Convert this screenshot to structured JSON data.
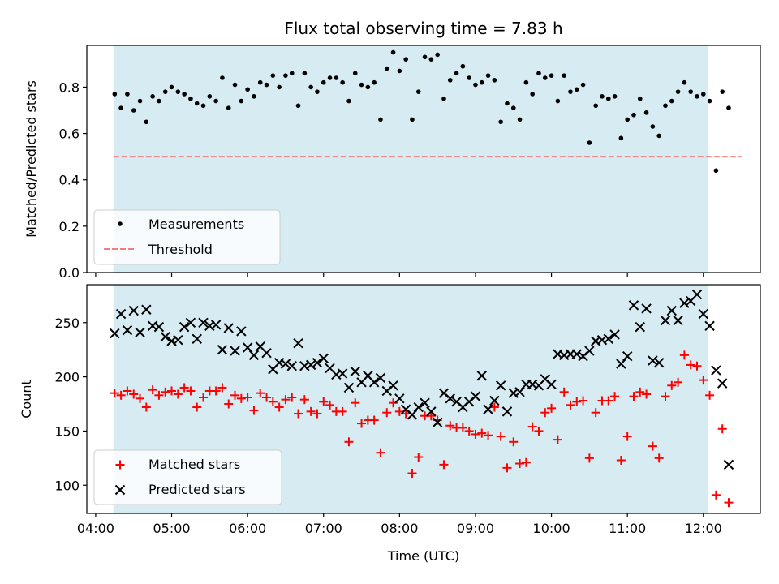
{
  "title": "Flux total observing time = 7.83 h",
  "colors": {
    "shade": "#add8e6",
    "measurement": "#000000",
    "threshold": "#f08080",
    "matched": "#ff0000",
    "predicted": "#000000"
  },
  "chart_data": [
    {
      "type": "scatter",
      "ylabel": "Matched/Predicted stars",
      "ylim": [
        0,
        0.98
      ],
      "yticks": [
        0.0,
        0.2,
        0.4,
        0.6,
        0.8
      ],
      "ytick_labels": [
        "0.0",
        "0.2",
        "0.4",
        "0.6",
        "0.8"
      ],
      "grid": false,
      "legend_position": "lower-left",
      "observing_window": [
        "04:14",
        "12:04"
      ],
      "threshold": {
        "name": "Threshold",
        "value": 0.5,
        "x_range": [
          "04:14",
          "12:30"
        ]
      },
      "series": [
        {
          "name": "Measurements",
          "x": [
            "04:15",
            "04:20",
            "04:25",
            "04:30",
            "04:35",
            "04:40",
            "04:45",
            "04:50",
            "04:55",
            "05:00",
            "05:05",
            "05:10",
            "05:15",
            "05:20",
            "05:25",
            "05:30",
            "05:35",
            "05:40",
            "05:45",
            "05:50",
            "05:55",
            "06:00",
            "06:05",
            "06:10",
            "06:15",
            "06:20",
            "06:25",
            "06:30",
            "06:35",
            "06:40",
            "06:45",
            "06:50",
            "06:55",
            "07:00",
            "07:05",
            "07:10",
            "07:15",
            "07:20",
            "07:25",
            "07:30",
            "07:35",
            "07:40",
            "07:45",
            "07:50",
            "07:55",
            "08:00",
            "08:05",
            "08:10",
            "08:15",
            "08:20",
            "08:25",
            "08:30",
            "08:35",
            "08:40",
            "08:45",
            "08:50",
            "08:55",
            "09:00",
            "09:05",
            "09:10",
            "09:15",
            "09:20",
            "09:25",
            "09:30",
            "09:35",
            "09:40",
            "09:45",
            "09:50",
            "09:55",
            "10:00",
            "10:05",
            "10:10",
            "10:15",
            "10:20",
            "10:25",
            "10:30",
            "10:35",
            "10:40",
            "10:45",
            "10:50",
            "10:55",
            "11:00",
            "11:05",
            "11:10",
            "11:15",
            "11:20",
            "11:25",
            "11:30",
            "11:35",
            "11:40",
            "11:45",
            "11:50",
            "11:55",
            "12:00",
            "12:05",
            "12:10",
            "12:15",
            "12:20"
          ],
          "y": [
            0.77,
            0.71,
            0.77,
            0.7,
            0.74,
            0.65,
            0.76,
            0.74,
            0.78,
            0.8,
            0.78,
            0.77,
            0.75,
            0.73,
            0.72,
            0.76,
            0.74,
            0.84,
            0.71,
            0.81,
            0.74,
            0.79,
            0.76,
            0.82,
            0.81,
            0.85,
            0.8,
            0.85,
            0.86,
            0.72,
            0.86,
            0.8,
            0.78,
            0.82,
            0.84,
            0.84,
            0.82,
            0.74,
            0.86,
            0.81,
            0.8,
            0.82,
            0.66,
            0.88,
            0.95,
            0.87,
            0.92,
            0.66,
            0.78,
            0.93,
            0.92,
            0.94,
            0.75,
            0.83,
            0.86,
            0.89,
            0.84,
            0.81,
            0.82,
            0.85,
            0.83,
            0.65,
            0.73,
            0.71,
            0.66,
            0.82,
            0.77,
            0.86,
            0.84,
            0.85,
            0.74,
            0.85,
            0.78,
            0.79,
            0.81,
            0.56,
            0.72,
            0.76,
            0.75,
            0.76,
            0.58,
            0.66,
            0.68,
            0.75,
            0.69,
            0.63,
            0.59,
            0.72,
            0.74,
            0.78,
            0.82,
            0.78,
            0.76,
            0.77,
            0.74,
            0.44,
            0.78,
            0.71
          ]
        }
      ]
    },
    {
      "type": "scatter",
      "xlabel": "Time (UTC)",
      "ylabel": "Count",
      "ylim": [
        74,
        285
      ],
      "yticks": [
        100,
        150,
        200,
        250
      ],
      "ytick_labels": [
        "100",
        "150",
        "200",
        "250"
      ],
      "xticks": [
        "04:00",
        "05:00",
        "06:00",
        "07:00",
        "08:00",
        "09:00",
        "10:00",
        "11:00",
        "12:00"
      ],
      "xlim": [
        "03:53",
        "12:45"
      ],
      "grid": false,
      "legend_position": "lower-left",
      "observing_window": [
        "04:14",
        "12:04"
      ],
      "series": [
        {
          "name": "Matched stars",
          "marker": "plus",
          "x": [
            "04:15",
            "04:20",
            "04:25",
            "04:30",
            "04:35",
            "04:40",
            "04:45",
            "04:50",
            "04:55",
            "05:00",
            "05:05",
            "05:10",
            "05:15",
            "05:20",
            "05:25",
            "05:30",
            "05:35",
            "05:40",
            "05:45",
            "05:50",
            "05:55",
            "06:00",
            "06:05",
            "06:10",
            "06:15",
            "06:20",
            "06:25",
            "06:30",
            "06:35",
            "06:40",
            "06:45",
            "06:50",
            "06:55",
            "07:00",
            "07:05",
            "07:10",
            "07:15",
            "07:20",
            "07:25",
            "07:30",
            "07:35",
            "07:40",
            "07:45",
            "07:50",
            "07:55",
            "08:00",
            "08:05",
            "08:10",
            "08:15",
            "08:20",
            "08:25",
            "08:30",
            "08:35",
            "08:40",
            "08:45",
            "08:50",
            "08:55",
            "09:00",
            "09:05",
            "09:10",
            "09:15",
            "09:20",
            "09:25",
            "09:30",
            "09:35",
            "09:40",
            "09:45",
            "09:50",
            "09:55",
            "10:00",
            "10:05",
            "10:10",
            "10:15",
            "10:20",
            "10:25",
            "10:30",
            "10:35",
            "10:40",
            "10:45",
            "10:50",
            "10:55",
            "11:00",
            "11:05",
            "11:10",
            "11:15",
            "11:20",
            "11:25",
            "11:30",
            "11:35",
            "11:40",
            "11:45",
            "11:50",
            "11:55",
            "12:00",
            "12:05",
            "12:10",
            "12:15",
            "12:20"
          ],
          "y": [
            185,
            183,
            187,
            184,
            180,
            172,
            188,
            183,
            186,
            187,
            184,
            190,
            187,
            172,
            181,
            187,
            187,
            190,
            175,
            183,
            180,
            181,
            169,
            185,
            181,
            177,
            172,
            179,
            181,
            166,
            179,
            168,
            166,
            177,
            174,
            168,
            168,
            140,
            176,
            157,
            160,
            160,
            130,
            167,
            176,
            168,
            166,
            111,
            126,
            164,
            164,
            160,
            119,
            155,
            153,
            153,
            150,
            147,
            148,
            146,
            172,
            145,
            116,
            140,
            120,
            121,
            154,
            150,
            167,
            171,
            142,
            186,
            174,
            177,
            178,
            125,
            167,
            178,
            178,
            182,
            123,
            145,
            182,
            186,
            184,
            136,
            125,
            182,
            192,
            195,
            220,
            211,
            210,
            197,
            183,
            91,
            152,
            84
          ]
        },
        {
          "name": "Predicted stars",
          "marker": "x",
          "x": [
            "04:15",
            "04:20",
            "04:25",
            "04:30",
            "04:35",
            "04:40",
            "04:45",
            "04:50",
            "04:55",
            "05:00",
            "05:05",
            "05:10",
            "05:15",
            "05:20",
            "05:25",
            "05:30",
            "05:35",
            "05:40",
            "05:45",
            "05:50",
            "05:55",
            "06:00",
            "06:05",
            "06:10",
            "06:15",
            "06:20",
            "06:25",
            "06:30",
            "06:35",
            "06:40",
            "06:45",
            "06:50",
            "06:55",
            "07:00",
            "07:05",
            "07:10",
            "07:15",
            "07:20",
            "07:25",
            "07:30",
            "07:35",
            "07:40",
            "07:45",
            "07:50",
            "07:55",
            "08:00",
            "08:05",
            "08:10",
            "08:15",
            "08:20",
            "08:25",
            "08:30",
            "08:35",
            "08:40",
            "08:45",
            "08:50",
            "08:55",
            "09:00",
            "09:05",
            "09:10",
            "09:15",
            "09:20",
            "09:25",
            "09:30",
            "09:35",
            "09:40",
            "09:45",
            "09:50",
            "09:55",
            "10:00",
            "10:05",
            "10:10",
            "10:15",
            "10:20",
            "10:25",
            "10:30",
            "10:35",
            "10:40",
            "10:45",
            "10:50",
            "10:55",
            "11:00",
            "11:05",
            "11:10",
            "11:15",
            "11:20",
            "11:25",
            "11:30",
            "11:35",
            "11:40",
            "11:45",
            "11:50",
            "11:55",
            "12:00",
            "12:05",
            "12:10",
            "12:15",
            "12:20"
          ],
          "y": [
            240,
            258,
            243,
            261,
            241,
            262,
            247,
            246,
            237,
            233,
            234,
            246,
            250,
            235,
            250,
            247,
            248,
            225,
            245,
            224,
            242,
            227,
            220,
            228,
            222,
            207,
            213,
            212,
            210,
            231,
            210,
            211,
            213,
            217,
            208,
            202,
            203,
            190,
            205,
            195,
            201,
            195,
            199,
            187,
            192,
            180,
            170,
            165,
            172,
            176,
            168,
            158,
            185,
            180,
            177,
            172,
            177,
            182,
            201,
            170,
            178,
            192,
            168,
            185,
            186,
            193,
            193,
            192,
            198,
            193,
            221,
            220,
            221,
            221,
            219,
            224,
            233,
            234,
            235,
            239,
            212,
            219,
            266,
            246,
            263,
            215,
            213,
            252,
            261,
            252,
            268,
            270,
            276,
            258,
            247,
            206,
            194,
            119
          ]
        }
      ]
    }
  ],
  "legends": {
    "top": [
      "Measurements",
      "Threshold"
    ],
    "bottom": [
      "Matched stars",
      "Predicted stars"
    ]
  }
}
